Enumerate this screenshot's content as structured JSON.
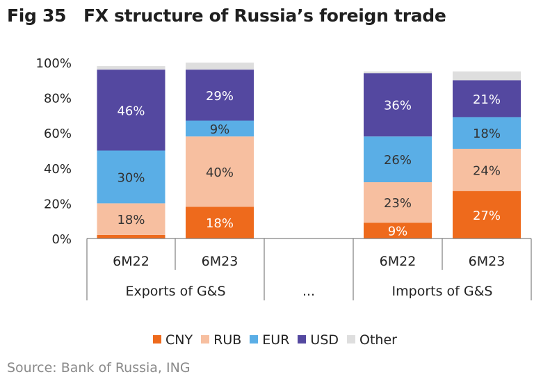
{
  "header": {
    "fig_label": "Fig 35",
    "title": "FX structure of Russia’s foreign trade"
  },
  "source": "Source: Bank of Russia, ING",
  "chart_data": {
    "type": "bar",
    "stacked": true,
    "title": "FX structure of Russia’s foreign trade",
    "ylim": [
      0,
      100
    ],
    "y_ticks": [
      "0%",
      "20%",
      "40%",
      "60%",
      "80%",
      "100%"
    ],
    "groups": [
      {
        "label": "Exports of G&S",
        "categories": [
          "6M22",
          "6M23"
        ]
      },
      {
        "label": "...",
        "categories": []
      },
      {
        "label": "Imports of G&S",
        "categories": [
          "6M22",
          "6M23"
        ]
      }
    ],
    "categories": [
      "6M22",
      "6M23",
      "6M22",
      "6M23"
    ],
    "series": [
      {
        "name": "CNY",
        "color": "#ee6a1c",
        "values": [
          2,
          18,
          9,
          27
        ],
        "labels": [
          "",
          "18%",
          "9%",
          "27%"
        ]
      },
      {
        "name": "RUB",
        "color": "#f7bfa0",
        "values": [
          18,
          40,
          23,
          24
        ],
        "labels": [
          "18%",
          "40%",
          "23%",
          "24%"
        ]
      },
      {
        "name": "EUR",
        "color": "#5aaee6",
        "values": [
          30,
          9,
          26,
          18
        ],
        "labels": [
          "30%",
          "9%",
          "26%",
          "18%"
        ]
      },
      {
        "name": "USD",
        "color": "#5448a0",
        "values": [
          46,
          29,
          36,
          21
        ],
        "labels": [
          "46%",
          "29%",
          "36%",
          "21%"
        ]
      },
      {
        "name": "Other",
        "color": "#dedede",
        "values": [
          2,
          4,
          1,
          5
        ],
        "labels": [
          "",
          "",
          "",
          ""
        ]
      }
    ],
    "grid": false,
    "legend_position": "bottom"
  }
}
